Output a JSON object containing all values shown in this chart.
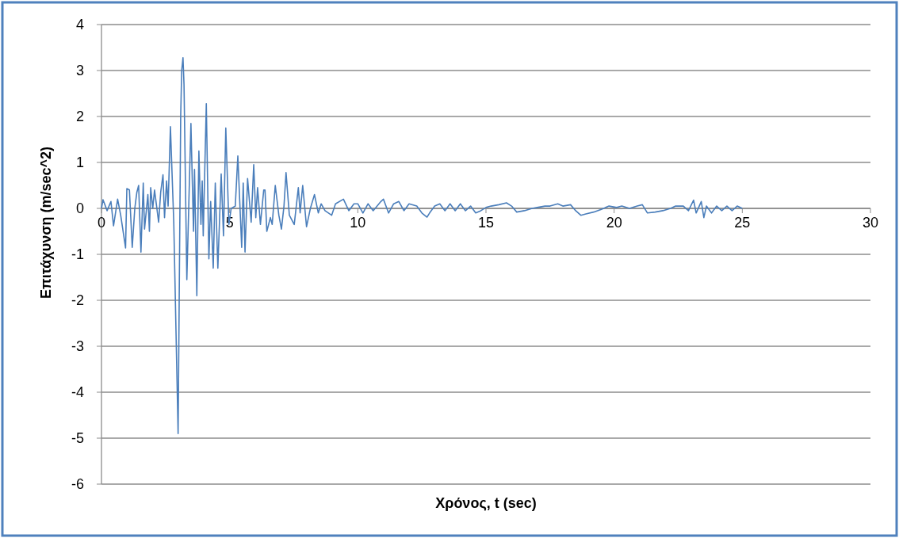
{
  "chart_data": {
    "type": "line",
    "xlabel": "Χρόνος, t (sec)",
    "ylabel": "Επιτάχυνση (m/sec^2)",
    "xlim": [
      0,
      30
    ],
    "xticks": [
      0,
      5,
      10,
      15,
      20,
      25,
      30
    ],
    "ylim": [
      -6,
      4
    ],
    "yticks": [
      -6,
      -5,
      -4,
      -3,
      -2,
      -1,
      0,
      1,
      2,
      3,
      4
    ],
    "grid": "y",
    "marker": "none",
    "line_style": "solid",
    "series": [
      {
        "color": "#4a7ebb",
        "x": [
          0,
          0.06,
          0.22,
          0.37,
          0.47,
          0.63,
          0.75,
          0.94,
          0.99,
          1.09,
          1.2,
          1.3,
          1.38,
          1.45,
          1.54,
          1.63,
          1.68,
          1.81,
          1.87,
          1.92,
          2.0,
          2.07,
          2.23,
          2.31,
          2.4,
          2.46,
          2.54,
          2.6,
          2.69,
          2.82,
          2.99,
          3.09,
          3.13,
          3.18,
          3.22,
          3.33,
          3.49,
          3.59,
          3.63,
          3.72,
          3.8,
          3.88,
          3.93,
          3.97,
          4.09,
          4.19,
          4.26,
          4.36,
          4.44,
          4.54,
          4.67,
          4.76,
          4.85,
          4.97,
          5.06,
          5.22,
          5.32,
          5.47,
          5.53,
          5.6,
          5.7,
          5.84,
          5.94,
          6.02,
          6.09,
          6.2,
          6.33,
          6.38,
          6.45,
          6.59,
          6.66,
          6.78,
          6.92,
          7.02,
          7.12,
          7.2,
          7.33,
          7.52,
          7.68,
          7.75,
          7.85,
          8.0,
          8.15,
          8.31,
          8.46,
          8.57,
          8.72,
          8.98,
          9.13,
          9.44,
          9.65,
          9.85,
          10.0,
          10.2,
          10.4,
          10.6,
          10.9,
          11.0,
          11.2,
          11.4,
          11.6,
          11.8,
          12.0,
          12.3,
          12.5,
          12.7,
          12.8,
          13.0,
          13.2,
          13.4,
          13.6,
          13.8,
          14.0,
          14.2,
          14.4,
          14.6,
          14.8,
          15.0,
          15.2,
          15.5,
          15.8,
          16.0,
          16.2,
          16.5,
          16.8,
          17.0,
          17.3,
          17.5,
          17.8,
          18.0,
          18.3,
          18.5,
          18.7,
          18.9,
          19.2,
          19.5,
          19.8,
          20.1,
          20.3,
          20.6,
          20.9,
          21.1,
          21.3,
          21.6,
          21.9,
          22.2,
          22.4,
          22.7,
          22.9,
          23.1,
          23.2,
          23.4,
          23.5,
          23.6,
          23.8,
          24.0,
          24.2,
          24.4,
          24.6,
          24.8,
          25.0
        ],
        "values": [
          0,
          0.19,
          -0.05,
          0.15,
          -0.38,
          0.2,
          -0.15,
          -0.86,
          0.43,
          0.4,
          -0.85,
          0,
          0.35,
          0.5,
          -0.95,
          0.55,
          -0.45,
          0.3,
          -0.5,
          0.45,
          0,
          0.4,
          -0.3,
          0.35,
          0.73,
          -0.2,
          0.6,
          0.05,
          1.78,
          -0.3,
          -4.9,
          2.0,
          3.0,
          3.28,
          2.7,
          -1.55,
          1.85,
          -0.5,
          0.85,
          -1.9,
          1.25,
          -0.35,
          0.6,
          -0.6,
          2.28,
          -1.1,
          0.15,
          -1.3,
          0.55,
          -1.3,
          0.75,
          -0.6,
          1.75,
          -0.35,
          0,
          0.05,
          1.14,
          -0.85,
          0.55,
          -0.95,
          0.65,
          -0.3,
          0.95,
          -0.2,
          0.45,
          -0.35,
          0.4,
          0.4,
          -0.5,
          -0.2,
          -0.35,
          0.5,
          -0.15,
          -0.45,
          0.05,
          0.78,
          -0.15,
          -0.35,
          0.45,
          -0.1,
          0.5,
          -0.4,
          0,
          0.3,
          -0.1,
          0.1,
          -0.05,
          -0.15,
          0.1,
          0.2,
          -0.05,
          0.1,
          0.1,
          -0.1,
          0.1,
          -0.05,
          0.15,
          0.2,
          -0.1,
          0.1,
          0.15,
          -0.05,
          0.1,
          0.05,
          -0.1,
          -0.19,
          -0.1,
          0.05,
          0.1,
          -0.05,
          0.1,
          -0.05,
          0.1,
          -0.05,
          0.05,
          -0.1,
          -0.05,
          0.02,
          0.05,
          0.08,
          0.12,
          0.05,
          -0.08,
          -0.05,
          0,
          0.02,
          0.05,
          0.05,
          0.1,
          0.05,
          0.08,
          -0.05,
          -0.15,
          -0.12,
          -0.08,
          -0.02,
          0.05,
          0.02,
          0.05,
          0,
          0.05,
          0.08,
          -0.1,
          -0.08,
          -0.05,
          0,
          0.05,
          0.05,
          -0.05,
          0.18,
          -0.1,
          0.15,
          -0.2,
          0.05,
          -0.1,
          0.05,
          -0.05,
          0.05,
          -0.05,
          0.05,
          0
        ]
      }
    ]
  }
}
